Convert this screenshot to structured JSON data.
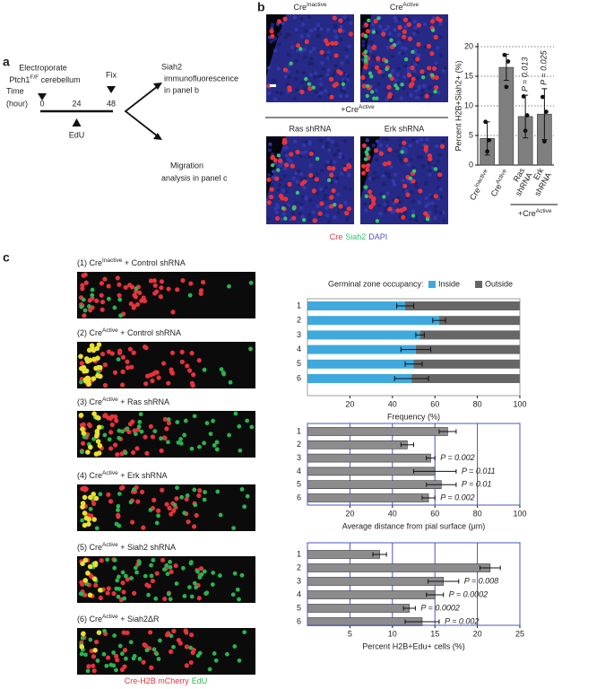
{
  "panel_a": {
    "label": "a",
    "electroporate": "Electroporate",
    "target": {
      "text": "Ptch1",
      "sup": "F/F",
      "after": " cerebellum"
    },
    "fix": "Fix",
    "time": "Time",
    "unit": "(hour)",
    "timepoints": [
      0,
      24,
      48
    ],
    "edu": "EdU",
    "outcome_b": [
      "Siah2",
      "immunofluorescence",
      "in panel b"
    ],
    "outcome_c": [
      "Migration",
      "analysis in panel c"
    ]
  },
  "panel_b": {
    "label": "b",
    "images": [
      {
        "text": "Cre",
        "sup": "Inactive"
      },
      {
        "text": "Cre",
        "sup": "Active"
      },
      "Ras shRNA",
      "Erk shRNA"
    ],
    "group": {
      "text": "+Cre",
      "sup": "Active"
    },
    "stain": [
      "Cre",
      "Siah2",
      "DAPI"
    ],
    "stain_colors": [
      "#e8323c",
      "#35c46a",
      "#4a50d8"
    ]
  },
  "panel_c": {
    "label": "c",
    "images": [
      {
        "text": "(1) Cre",
        "sup": "Inactive",
        "after": " + Control shRNA"
      },
      {
        "text": "(2) Cre",
        "sup": "Active",
        "after": " + Control shRNA"
      },
      {
        "text": "(3) Cre",
        "sup": "Active",
        "after": " + Ras shRNA"
      },
      {
        "text": "(4) Cre",
        "sup": "Active",
        "after": " + Erk shRNA"
      },
      {
        "text": "(5) Cre",
        "sup": "Active",
        "after": " + Siah2 shRNA"
      },
      {
        "text": "(6) Cre",
        "sup": "Active",
        "after": " + Siah2ΔR"
      }
    ],
    "stain": [
      "Cre-H2B mCherry",
      "EdU"
    ],
    "stain_colors": [
      "#e8323c",
      "#2bb34f"
    ]
  },
  "chart_data": [
    {
      "type": "bar",
      "ylabel": "Percent H2B+Siah2+ (%)",
      "categories": [
        {
          "text": "Cre",
          "sup": "Inactive"
        },
        {
          "text": "Cre",
          "sup": "Active"
        },
        "Ras shRNA",
        "Erk shRNA"
      ],
      "values": [
        4.5,
        16.5,
        8.2,
        8.6
      ],
      "errors": [
        2.8,
        2.2,
        3.6,
        4.3
      ],
      "points": [
        [
          7.3,
          4.2,
          2.3
        ],
        [
          18.6,
          17.5,
          13.2
        ],
        [
          11.6,
          8.4,
          5.8
        ],
        [
          11.5,
          9.0,
          4.0
        ]
      ],
      "annotations": [
        null,
        null,
        "P = 0.013",
        "P = 0.025"
      ],
      "group_label": {
        "text": "+Cre",
        "sup": "Active"
      },
      "color": "#7f7f7f",
      "ylim": [
        0,
        20
      ],
      "yticks": [
        0,
        5,
        10,
        15,
        20
      ],
      "grid": true
    },
    {
      "type": "stacked_bar_h",
      "title": "Germinal zone occupancy:",
      "categories": [
        "1",
        "2",
        "3",
        "4",
        "5",
        "6"
      ],
      "series": [
        {
          "name": "Inside",
          "color": "#3fa9de",
          "values": [
            46,
            62,
            53,
            51,
            50,
            49
          ],
          "errors": [
            4,
            3,
            2,
            7,
            4,
            8
          ]
        },
        {
          "name": "Outside",
          "color": "#666666",
          "values": [
            54,
            38,
            47,
            49,
            50,
            51
          ]
        }
      ],
      "xlabel": "Frequency (%)",
      "xlim": [
        0,
        100
      ],
      "xticks": [
        20,
        40,
        60,
        80,
        100
      ]
    },
    {
      "type": "bar_h",
      "categories": [
        "1",
        "2",
        "3",
        "4",
        "5",
        "6"
      ],
      "values": [
        66,
        47,
        58,
        60,
        63,
        57
      ],
      "errors": [
        4,
        3,
        2,
        10,
        7,
        3
      ],
      "annotations": [
        null,
        null,
        "P = 0.002",
        "P = 0.011",
        "P = 0.01",
        "P = 0.002"
      ],
      "xlabel": "Average distance from pial surface (μm)",
      "xlim": [
        0,
        100
      ],
      "xticks": [
        20,
        40,
        60,
        80,
        100
      ],
      "grid": true,
      "grid_color": "#4a55c0",
      "color": "#8c8c8c"
    },
    {
      "type": "bar_h",
      "categories": [
        "1",
        "2",
        "3",
        "4",
        "5",
        "6"
      ],
      "values": [
        8.5,
        21.5,
        16,
        15,
        12,
        13.5
      ],
      "errors": [
        0.8,
        1.2,
        1.8,
        1.0,
        0.7,
        2.0
      ],
      "annotations": [
        null,
        null,
        "P = 0.008",
        "P = 0.0002",
        "P = 0.0002",
        "P = 0.002"
      ],
      "xlabel": "Percent H2B+Edu+ cells (%)",
      "xlim": [
        0,
        25
      ],
      "xticks": [
        5,
        10,
        15,
        20,
        25
      ],
      "grid": true,
      "grid_color": "#4a55c0",
      "color": "#8c8c8c"
    }
  ]
}
